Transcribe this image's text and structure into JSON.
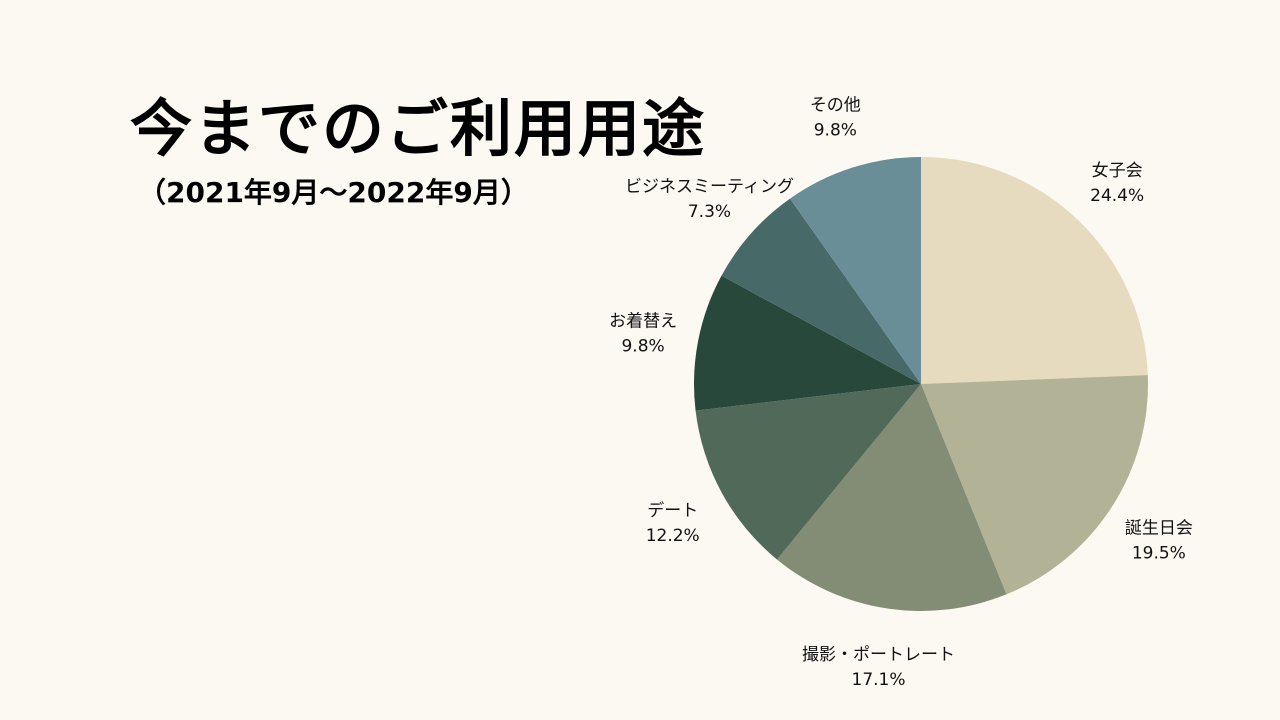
{
  "title": "今までのご利用用途",
  "subtitle": "（2021年9月〜2022年9月）",
  "chart_data": {
    "type": "pie",
    "title": "今までのご利用用途",
    "subtitle": "（2021年9月〜2022年9月）",
    "start": "top, clockwise",
    "slices": [
      {
        "label": "女子会",
        "value": 24.4,
        "display": "24.4%",
        "color": "#e6dabf"
      },
      {
        "label": "誕生日会",
        "value": 19.5,
        "display": "19.5%",
        "color": "#b2b297"
      },
      {
        "label": "撮影・ポートレート",
        "value": 17.1,
        "display": "17.1%",
        "color": "#838c74"
      },
      {
        "label": "デート",
        "value": 12.2,
        "display": "12.2%",
        "color": "#516959"
      },
      {
        "label": "お着替え",
        "value": 9.8,
        "display": "9.8%",
        "color": "#27483b"
      },
      {
        "label": "ビジネスミーティング",
        "value": 7.3,
        "display": "7.3%",
        "color": "#476a69"
      },
      {
        "label": "その他",
        "value": 9.8,
        "display": "9.8%",
        "color": "#6a8e98"
      }
    ]
  }
}
